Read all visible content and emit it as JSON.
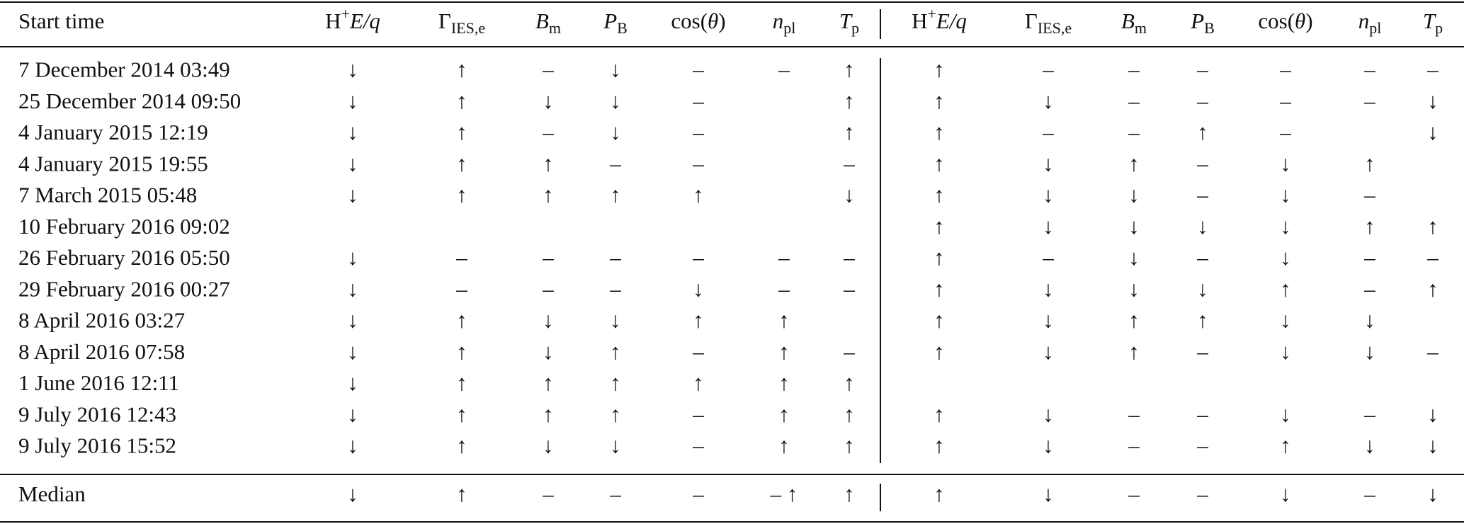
{
  "columns": [
    "Start time",
    [
      "H",
      "+",
      "E/q"
    ],
    [
      "Γ",
      "IES,e"
    ],
    [
      "B",
      "m"
    ],
    [
      "P",
      "B"
    ],
    [
      "cos(",
      "θ",
      ")"
    ],
    [
      "n",
      "pl"
    ],
    [
      "T",
      "p"
    ]
  ],
  "rows": [
    {
      "start": "7 December 2014 03:49",
      "cells": [
        "↓",
        "↑",
        "–",
        "↓",
        "–",
        "–",
        "↑",
        "↑",
        "–",
        "–",
        "–",
        "–",
        "–",
        "–"
      ]
    },
    {
      "start": "25 December 2014 09:50",
      "cells": [
        "↓",
        "↑",
        "↓",
        "↓",
        "–",
        null,
        "↑",
        "↑",
        "↓",
        "–",
        "–",
        "–",
        "–",
        "↓"
      ]
    },
    {
      "start": "4 January 2015 12:19",
      "cells": [
        "↓",
        "↑",
        "–",
        "↓",
        "–",
        null,
        "↑",
        "↑",
        "–",
        "–",
        "↑",
        "–",
        null,
        "↓"
      ]
    },
    {
      "start": "4 January 2015 19:55",
      "cells": [
        "↓",
        "↑",
        "↑",
        "–",
        "–",
        null,
        "–",
        "↑",
        "↓",
        "↑",
        "–",
        "↓",
        "↑",
        null
      ]
    },
    {
      "start": "7 March 2015 05:48",
      "cells": [
        "↓",
        "↑",
        "↑",
        "↑",
        "↑",
        null,
        "↓",
        "↑",
        "↓",
        "↓",
        "–",
        "↓",
        "–",
        null
      ]
    },
    {
      "start": "10 February 2016 09:02",
      "cells": [
        null,
        null,
        null,
        null,
        null,
        null,
        null,
        "↑",
        "↓",
        "↓",
        "↓",
        "↓",
        "↑",
        "↑"
      ]
    },
    {
      "start": "26 February 2016 05:50",
      "cells": [
        "↓",
        "–",
        "–",
        "–",
        "–",
        "–",
        "–",
        "↑",
        "–",
        "↓",
        "–",
        "↓",
        "–",
        "–"
      ]
    },
    {
      "start": "29 February 2016 00:27",
      "cells": [
        "↓",
        "–",
        "–",
        "–",
        "↓",
        "–",
        "–",
        "↑",
        "↓",
        "↓",
        "↓",
        "↑",
        "–",
        "↑"
      ]
    },
    {
      "start": "8 April 2016 03:27",
      "cells": [
        "↓",
        "↑",
        "↓",
        "↓",
        "↑",
        "↑",
        null,
        "↑",
        "↓",
        "↑",
        "↑",
        "↓",
        "↓",
        null
      ]
    },
    {
      "start": "8 April 2016 07:58",
      "cells": [
        "↓",
        "↑",
        "↓",
        "↑",
        "–",
        "↑",
        "–",
        "↑",
        "↓",
        "↑",
        "–",
        "↓",
        "↓",
        "–"
      ]
    },
    {
      "start": "1 June 2016 12:11",
      "cells": [
        "↓",
        "↑",
        "↑",
        "↑",
        "↑",
        "↑",
        "↑",
        null,
        null,
        null,
        null,
        null,
        null,
        null
      ]
    },
    {
      "start": "9 July 2016 12:43",
      "cells": [
        "↓",
        "↑",
        "↑",
        "↑",
        "–",
        "↑",
        "↑",
        "↑",
        "↓",
        "–",
        "–",
        "↓",
        "–",
        "↓"
      ]
    },
    {
      "start": "9 July 2016 15:52",
      "cells": [
        "↓",
        "↑",
        "↓",
        "↓",
        "–",
        "↑",
        "↑",
        "↑",
        "↓",
        "–",
        "–",
        "↑",
        "↓",
        "↓"
      ]
    }
  ],
  "median": {
    "label": "Median",
    "cells": [
      "↓",
      "↑",
      "–",
      "–",
      "–",
      "– ↑",
      "↑",
      "↑",
      "↓",
      "–",
      "–",
      "↓",
      "–",
      "↓"
    ]
  }
}
